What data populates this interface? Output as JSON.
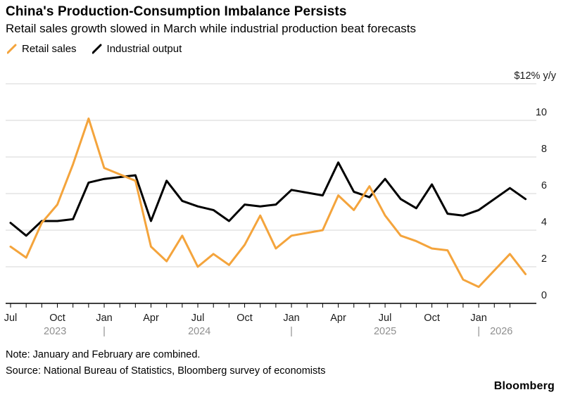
{
  "header": {
    "title": "China's Production-Consumption Imbalance Persists",
    "subtitle": "Retail sales growth slowed in March while industrial production beat forecasts"
  },
  "legend": [
    {
      "label": "Retail sales",
      "color": "#F4A43C"
    },
    {
      "label": "Industrial output",
      "color": "#000000"
    }
  ],
  "chart_data": {
    "type": "line",
    "title": "China's Production-Consumption Imbalance Persists",
    "unit_label": "$12% y/y",
    "ylim": [
      0,
      12
    ],
    "y_axis": {
      "tick_values": [
        0,
        2,
        4,
        6,
        8,
        10
      ],
      "top_value": 12,
      "side": "right",
      "grid": true
    },
    "x_axis": {
      "month_labels": [
        "Jul",
        "Oct",
        "Jan",
        "Apr",
        "Jul",
        "Oct",
        "Jan",
        "Apr",
        "Jul",
        "Oct",
        "Jan"
      ],
      "month_label_step": 3,
      "tick_count": 33,
      "year_row": [
        {
          "i": 2.85,
          "text": "2023"
        },
        {
          "i": 6.0,
          "text": "|"
        },
        {
          "i": 12.1,
          "text": "2024"
        },
        {
          "i": 18.0,
          "text": "|"
        },
        {
          "i": 24.0,
          "text": "2025"
        },
        {
          "i": 30.0,
          "text": "|"
        },
        {
          "i": 31.45,
          "text": "2026"
        }
      ]
    },
    "series": [
      {
        "name": "Industrial output",
        "color": "#000000",
        "points": [
          [
            "Jul 2023",
            4.4
          ],
          [
            "Aug 2023",
            3.7
          ],
          [
            "Sep 2023",
            4.5
          ],
          [
            "Oct 2023",
            4.5
          ],
          [
            "Nov 2023",
            4.6
          ],
          [
            "Dec 2023",
            6.6
          ],
          [
            "Jan 2024",
            6.8
          ],
          [
            "Mar 2024",
            7.0
          ],
          [
            "Apr 2024",
            4.5
          ],
          [
            "May 2024",
            6.7
          ],
          [
            "Jun 2024",
            5.6
          ],
          [
            "Jul 2024",
            5.3
          ],
          [
            "Aug 2024",
            5.1
          ],
          [
            "Sep 2024",
            4.5
          ],
          [
            "Oct 2024",
            5.4
          ],
          [
            "Nov 2024",
            5.3
          ],
          [
            "Dec 2024",
            5.4
          ],
          [
            "Jan 2025",
            6.2
          ],
          [
            "Mar 2025",
            5.9
          ],
          [
            "Apr 2025",
            7.7
          ],
          [
            "May 2025",
            6.1
          ],
          [
            "Jun 2025",
            5.8
          ],
          [
            "Jul 2025",
            6.8
          ],
          [
            "Aug 2025",
            5.7
          ],
          [
            "Sep 2025",
            5.2
          ],
          [
            "Oct 2025",
            6.5
          ],
          [
            "Nov 2025",
            4.9
          ],
          [
            "Dec 2025",
            4.8
          ],
          [
            "Jan 2026",
            5.1
          ],
          [
            "Mar 2026",
            6.3
          ],
          [
            "Apr 2026",
            5.7
          ]
        ]
      },
      {
        "name": "Retail sales",
        "color": "#F4A43C",
        "points": [
          [
            "Jul 2023",
            3.1
          ],
          [
            "Aug 2023",
            2.5
          ],
          [
            "Sep 2023",
            4.4
          ],
          [
            "Oct 2023",
            5.4
          ],
          [
            "Nov 2023",
            7.6
          ],
          [
            "Dec 2023",
            10.1
          ],
          [
            "Jan 2024",
            7.4
          ],
          [
            "Mar 2024",
            6.7
          ],
          [
            "Apr 2024",
            3.1
          ],
          [
            "May 2024",
            2.3
          ],
          [
            "Jun 2024",
            3.7
          ],
          [
            "Jul 2024",
            2.0
          ],
          [
            "Aug 2024",
            2.7
          ],
          [
            "Sep 2024",
            2.1
          ],
          [
            "Oct 2024",
            3.2
          ],
          [
            "Nov 2024",
            4.8
          ],
          [
            "Dec 2024",
            3.0
          ],
          [
            "Jan 2025",
            3.7
          ],
          [
            "Mar 2025",
            4.0
          ],
          [
            "Apr 2025",
            5.9
          ],
          [
            "May 2025",
            5.1
          ],
          [
            "Jun 2025",
            6.4
          ],
          [
            "Jul 2025",
            4.8
          ],
          [
            "Aug 2025",
            3.7
          ],
          [
            "Sep 2025",
            3.4
          ],
          [
            "Oct 2025",
            3.0
          ],
          [
            "Nov 2025",
            2.9
          ],
          [
            "Dec 2025",
            1.3
          ],
          [
            "Jan 2026",
            0.9
          ],
          [
            "Mar 2026",
            2.7
          ],
          [
            "Apr 2026",
            1.6
          ]
        ]
      }
    ],
    "colors": {
      "grid": "#d4d4d4",
      "axis": "#000000",
      "month_label": "#1a1a1a",
      "year_label": "#8f8f8f"
    }
  },
  "footer": {
    "note": "Note: January and February are combined.",
    "source": "Source: National Bureau of Statistics, Bloomberg survey of economists",
    "logo": "Bloomberg"
  }
}
